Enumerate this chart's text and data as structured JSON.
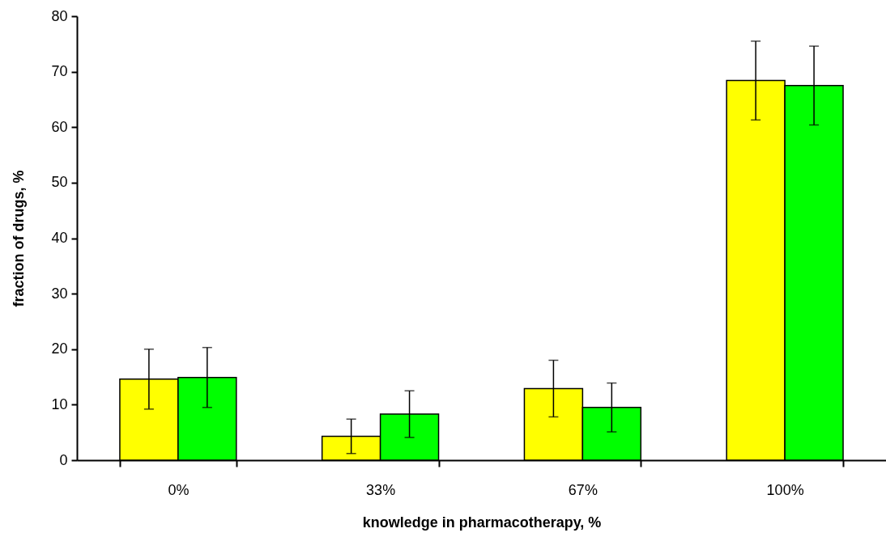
{
  "chart_data": {
    "type": "bar",
    "xlabel": "knowledge in pharmacotherapy, %",
    "ylabel": "fraction of drugs, %",
    "categories": [
      "0%",
      "33%",
      "67%",
      "100%"
    ],
    "series": [
      {
        "color": "#ffff00",
        "values": [
          14.6,
          4.3,
          12.9,
          68.4
        ],
        "errors": [
          5.4,
          3.1,
          5.1,
          7.1
        ]
      },
      {
        "color": "#00ff00",
        "values": [
          14.9,
          8.3,
          9.5,
          67.5
        ],
        "errors": [
          5.4,
          4.2,
          4.4,
          7.1
        ]
      }
    ],
    "ylim": [
      0,
      80
    ],
    "yticks": [
      0,
      10,
      20,
      30,
      40,
      50,
      60,
      70,
      80
    ],
    "grid": false
  }
}
